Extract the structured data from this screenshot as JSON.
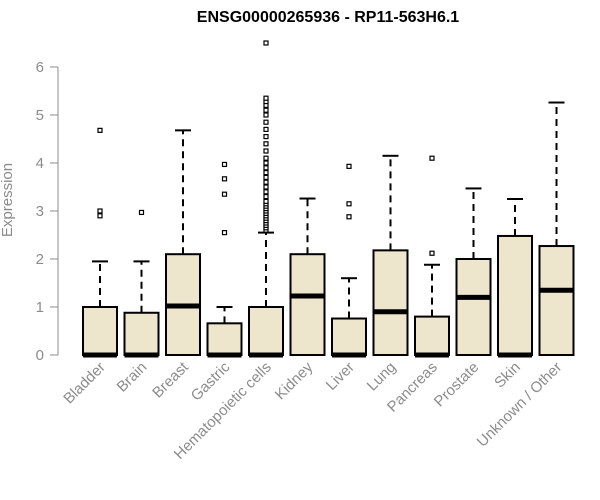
{
  "chart_data": {
    "type": "boxplot",
    "title": "ENSG00000265936 - RP11-563H6.1",
    "xlabel": "",
    "ylabel": "Expression",
    "ylim": [
      0,
      6
    ],
    "yticks": [
      0,
      1,
      2,
      3,
      4,
      5,
      6
    ],
    "grid": false,
    "legend": "none",
    "colors": {
      "box_fill": "#ede6cc",
      "stroke": "#000000",
      "axis_text": "#8c8c8c"
    },
    "categories": [
      "Bladder",
      "Brain",
      "Breast",
      "Gastric",
      "Hematopoietic cells",
      "Kidney",
      "Liver",
      "Lung",
      "Pancreas",
      "Prostate",
      "Skin",
      "Unknown / Other"
    ],
    "boxes": [
      {
        "min": 0,
        "q1": 0,
        "median": 0,
        "q3": 1.0,
        "max": 1.95,
        "outliers": [
          2.9,
          3.0,
          4.68
        ]
      },
      {
        "min": 0,
        "q1": 0,
        "median": 0,
        "q3": 0.88,
        "max": 1.95,
        "outliers": [
          2.97
        ]
      },
      {
        "min": 0,
        "q1": 0,
        "median": 1.02,
        "q3": 2.1,
        "max": 4.68,
        "outliers": []
      },
      {
        "min": 0,
        "q1": 0,
        "median": 0,
        "q3": 0.66,
        "max": 1.0,
        "outliers": [
          2.55,
          3.35,
          3.67,
          3.97
        ]
      },
      {
        "min": 0,
        "q1": 0,
        "median": 0,
        "q3": 1.0,
        "max": 2.55,
        "outliers": [
          2.6,
          2.65,
          2.7,
          2.75,
          2.8,
          2.85,
          2.9,
          2.95,
          3.0,
          3.05,
          3.1,
          3.15,
          3.2,
          3.3,
          3.4,
          3.5,
          3.6,
          3.7,
          3.8,
          3.9,
          4.0,
          4.1,
          4.25,
          4.4,
          4.55,
          4.7,
          4.85,
          5.0,
          5.1,
          5.2,
          5.28,
          5.35,
          6.5
        ]
      },
      {
        "min": 0,
        "q1": 0,
        "median": 1.23,
        "q3": 2.1,
        "max": 3.26,
        "outliers": []
      },
      {
        "min": 0,
        "q1": 0,
        "median": 0,
        "q3": 0.76,
        "max": 1.6,
        "outliers": [
          2.88,
          3.15,
          3.93
        ]
      },
      {
        "min": 0,
        "q1": 0,
        "median": 0.9,
        "q3": 2.18,
        "max": 4.15,
        "outliers": []
      },
      {
        "min": 0,
        "q1": 0,
        "median": 0,
        "q3": 0.8,
        "max": 1.88,
        "outliers": [
          2.12,
          4.1
        ]
      },
      {
        "min": 0,
        "q1": 0,
        "median": 1.2,
        "q3": 2.0,
        "max": 3.47,
        "outliers": []
      },
      {
        "min": 0,
        "q1": 0,
        "median": 0,
        "q3": 2.48,
        "max": 3.25,
        "outliers": []
      },
      {
        "min": 0,
        "q1": 0,
        "median": 1.35,
        "q3": 2.27,
        "max": 5.26,
        "outliers": []
      }
    ]
  }
}
